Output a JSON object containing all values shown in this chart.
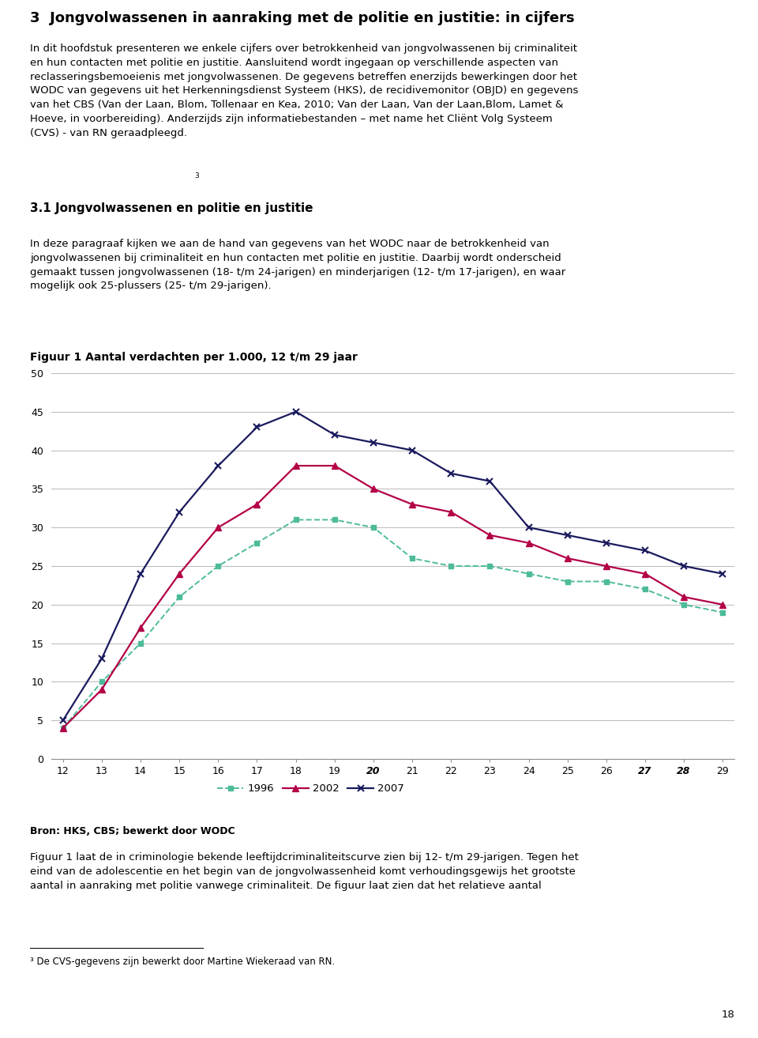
{
  "title": "Figuur 1 Aantal verdachten per 1.000, 12 t/m 29 jaar",
  "section_title": "3  Jongvolwassenen in aanraking met de politie en justitie: in cijfers",
  "subsection_title": "3.1 Jongvolwassenen en politie en justitie",
  "para1_line1": "In dit hoofdstuk presenteren we enkele cijfers over betrokkenheid van jongvolwassenen bij criminaliteit",
  "para1_line2": "en hun contacten met politie en justitie. Aansluitend wordt ingegaan op verschillende aspecten van",
  "para1_line3": "reclasseringsbemoeienis met jongvolwassenen. De gegevens betreffen enerzijds bewerkingen door het",
  "para1_line4": "WODC van gegevens uit het Herkenningsdienst Systeem (HKS), de recidivemonitor (OBJD) en gegevens",
  "para1_line5": "van het CBS (Van der Laan, Blom, Tollenaar en Kea, 2010; Van der Laan, Van der Laan,Blom, Lamet &",
  "para1_line6": "Hoeve, in voorbereiding). Anderzijds zijn informatiebestanden – met name het Cliënt Volg Systeem",
  "para1_line7": "(CVS) - van RN geraadpleegd.",
  "footnote_ref": "3",
  "para2_line1": "In deze paragraaf kijken we aan de hand van gegevens van het WODC naar de betrokkenheid van",
  "para2_line2": "jongvolwassenen bij criminaliteit en hun contacten met politie en justitie. Daarbij wordt onderscheid",
  "para2_line3": "gemaakt tussen jongvolwassenen (18- t/m 24-jarigen) en minderjarigen (12- t/m 17-jarigen), en waar",
  "para2_line4": "mogelijk ook 25-plussers (25- t/m 29-jarigen).",
  "source_label": "Bron: HKS, CBS; bewerkt door WODC",
  "para3_line1": "Figuur 1 laat de in criminologie bekende leeftijdcriminaliteitscurve zien bij 12- t/m 29-jarigen. Tegen het",
  "para3_line2": "eind van de adolescentie en het begin van de jongvolwassenheid komt verhoudingsgewijs het grootste",
  "para3_line3": "aantal in aanraking met politie vanwege criminaliteit. De figuur laat zien dat het relatieve aantal",
  "footnote_text": "De CVS-gegevens zijn bewerkt door Martine Wiekeraad van RN.",
  "footnote_num": "3",
  "page_num": "18",
  "x_ages": [
    12,
    13,
    14,
    15,
    16,
    17,
    18,
    19,
    20,
    21,
    22,
    23,
    24,
    25,
    26,
    27,
    28,
    29
  ],
  "series_1996": [
    4,
    10,
    15,
    21,
    25,
    28,
    31,
    31,
    30,
    26,
    25,
    25,
    24,
    23,
    23,
    22,
    20,
    19
  ],
  "series_2002": [
    4,
    9,
    17,
    24,
    30,
    33,
    38,
    38,
    35,
    33,
    32,
    29,
    28,
    26,
    25,
    24,
    21,
    20
  ],
  "series_2007": [
    5,
    13,
    24,
    32,
    38,
    43,
    45,
    42,
    41,
    40,
    37,
    36,
    30,
    29,
    28,
    27,
    25,
    24
  ],
  "color_1996": "#4dbb9a",
  "color_2002": "#b30047",
  "color_2007": "#1a1a5e",
  "ylim": [
    0,
    50
  ],
  "yticks": [
    0,
    5,
    10,
    15,
    20,
    25,
    30,
    35,
    40,
    45,
    50
  ],
  "xlim_min": 12,
  "xlim_max": 29,
  "legend_labels": [
    "1996",
    "2002",
    "2007"
  ],
  "bg_color": "#ffffff",
  "grid_color": "#c0c0c0",
  "bold_italic_ages": [
    20,
    27,
    28
  ]
}
